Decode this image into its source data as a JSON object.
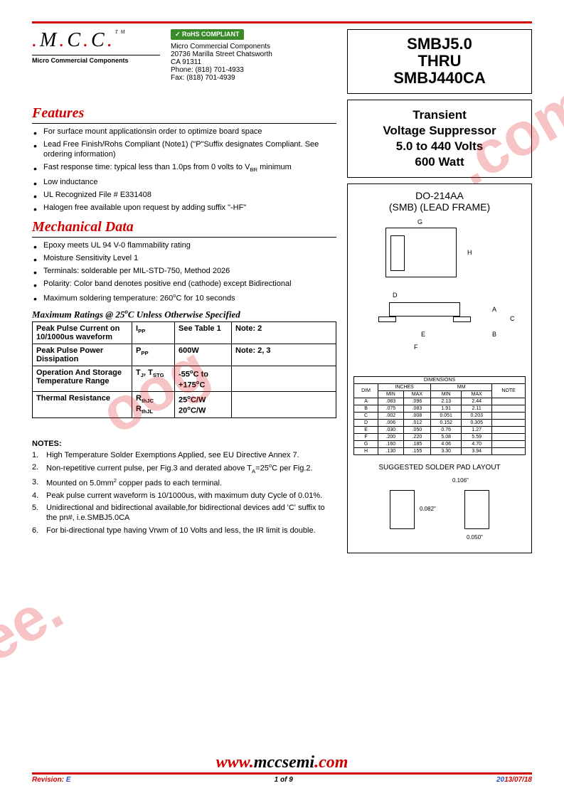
{
  "logo": {
    "text_parts": [
      "M",
      "C",
      "C"
    ],
    "subtitle": "Micro Commercial Components",
    "tm": "TM"
  },
  "rohs": {
    "badge": "RoHS COMPLIANT"
  },
  "address": {
    "company": "Micro Commercial Components",
    "street": "20736 Marilla Street Chatsworth",
    "citystate": "CA 91311",
    "phone": "Phone: (818) 701-4933",
    "fax": "Fax:      (818) 701-4939"
  },
  "title": {
    "line1": "SMBJ5.0",
    "line2": "THRU",
    "line3": "SMBJ440CA"
  },
  "description": {
    "line1": "Transient",
    "line2": "Voltage Suppressor",
    "line3": "5.0 to 440 Volts",
    "line4": "600 Watt"
  },
  "features": {
    "heading": "Features",
    "items": [
      "For surface mount applicationsin order to optimize board space",
      "Lead Free Finish/Rohs Compliant (Note1) (\"P\"Suffix designates Compliant. See ordering information)",
      "Fast response time: typical less than 1.0ps from 0 volts to V_BR minimum",
      "Low inductance",
      "UL Recognized File # E331408",
      "Halogen free available upon request by adding suffix \"-HF\""
    ]
  },
  "mechanical": {
    "heading": "Mechanical Data",
    "items": [
      "Epoxy meets UL 94 V-0 flammability rating",
      "Moisture Sensitivity Level 1",
      "Terminals:  solderable per MIL-STD-750, Method 2026",
      "Polarity: Color band denotes positive end (cathode) except Bidirectional",
      "Maximum soldering temperature: 260°C for 10 seconds"
    ]
  },
  "ratings": {
    "heading": "Maximum Ratings @ 25°C Unless Otherwise Specified",
    "rows": [
      {
        "param": "Peak Pulse Current on 10/1000us waveform",
        "sym": "I_PP",
        "val": "See Table 1",
        "note": "Note: 2"
      },
      {
        "param": "Peak Pulse Power Dissipation",
        "sym": "P_PP",
        "val": "600W",
        "note": "Note: 2, 3"
      },
      {
        "param": "Operation And Storage Temperature Range",
        "sym": "T_J, T_STG",
        "val": "-55°C to +175°C",
        "note": ""
      },
      {
        "param": "Thermal Resistance",
        "sym": "R_thJC\nR_thJL",
        "val": "25°C/W\n20°C/W",
        "note": ""
      }
    ]
  },
  "notes": {
    "heading": "NOTES:",
    "items": [
      "High Temperature Solder Exemptions Applied, see EU Directive Annex 7.",
      "Non-repetitive current pulse,  per Fig.3 and derated above T_A=25°C per Fig.2.",
      "Mounted on 5.0mm² copper pads to each terminal.",
      "Peak pulse current waveform is 10/1000us, with maximum duty Cycle of 0.01%.",
      "Unidirectional and bidirectional available,for bidirectional devices add 'C' suffix to the pn#,  i.e.SMBJ5.0CA",
      "For bi-directional type having Vrwm of 10 Volts and less, the IR limit is double."
    ]
  },
  "package": {
    "title1": "DO-214AA",
    "title2": "(SMB) (LEAD FRAME)",
    "dim_labels": {
      "G": "G",
      "H": "H",
      "D": "D",
      "A": "A",
      "C": "C",
      "B": "B",
      "E": "E",
      "F": "F"
    },
    "dims_heading": "DIMENSIONS",
    "dims_cols": {
      "dim": "DIM",
      "inches": "INCHES",
      "mm": "MM",
      "note": "NOTE",
      "min": "MIN",
      "max": "MAX"
    },
    "dims_rows": [
      {
        "d": "A",
        "imin": ".083",
        "imax": ".096",
        "mmin": "2.13",
        "mmax": "2.44",
        "n": ""
      },
      {
        "d": "B",
        "imin": ".075",
        "imax": ".083",
        "mmin": "1.91",
        "mmax": "2.11",
        "n": ""
      },
      {
        "d": "C",
        "imin": ".002",
        "imax": ".008",
        "mmin": "0.051",
        "mmax": "0.203",
        "n": ""
      },
      {
        "d": "D",
        "imin": ".006",
        "imax": ".012",
        "mmin": "0.152",
        "mmax": "0.305",
        "n": ""
      },
      {
        "d": "E",
        "imin": ".030",
        "imax": ".050",
        "mmin": "0.76",
        "mmax": "1.27",
        "n": ""
      },
      {
        "d": "F",
        "imin": ".200",
        "imax": ".220",
        "mmin": "5.08",
        "mmax": "5.59",
        "n": ""
      },
      {
        "d": "G",
        "imin": ".160",
        "imax": ".185",
        "mmin": "4.06",
        "mmax": "4.70",
        "n": ""
      },
      {
        "d": "H",
        "imin": ".130",
        "imax": ".155",
        "mmin": "3.30",
        "mmax": "3.94",
        "n": ""
      }
    ]
  },
  "padlayout": {
    "title": "SUGGESTED SOLDER PAD LAYOUT",
    "dim1": "0.106\"",
    "dim2": "0.082\"",
    "dim3": "0.050\""
  },
  "footer": {
    "url_parts": {
      "w": "www.",
      "m": "mccsemi",
      "c": ".com"
    },
    "revision_label": "Revision:",
    "revision_val": "E",
    "page": "1 of 9",
    "date_pre": "20",
    "date_rest": "13/07/18"
  },
  "watermark": {
    "text1": ".com",
    "text2": "oog",
    "text3": "ee."
  }
}
